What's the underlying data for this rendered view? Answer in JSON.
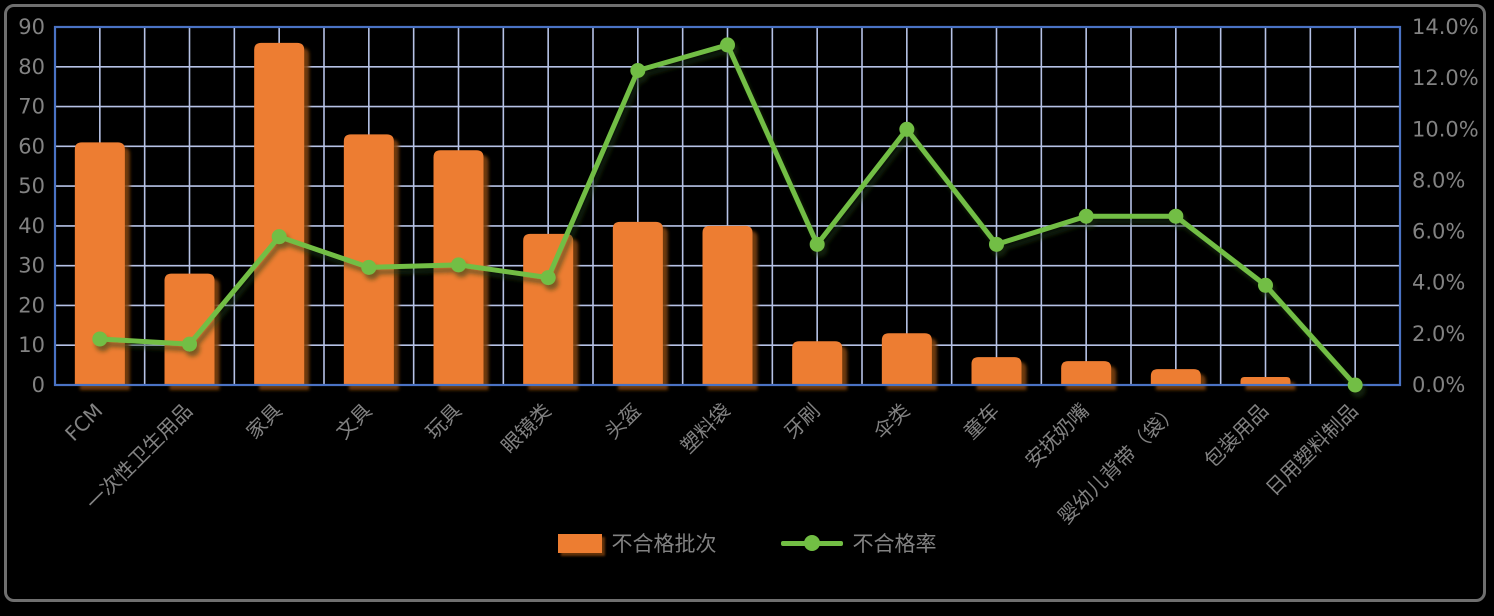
{
  "chart_data": {
    "type": "bar",
    "combo": "bar+line",
    "title": "",
    "categories": [
      "FCM",
      "一次性卫生用品",
      "家具",
      "文具",
      "玩具",
      "眼镜类",
      "头盔",
      "塑料袋",
      "牙刷",
      "伞类",
      "童车",
      "安抚奶嘴",
      "婴幼儿背带（袋）",
      "包装用品",
      "日用塑料制品"
    ],
    "series": [
      {
        "name": "不合格批次",
        "type": "bar",
        "axis": "left",
        "values": [
          61,
          28,
          86,
          63,
          59,
          38,
          41,
          40,
          11,
          13,
          7,
          6,
          4,
          2,
          0
        ]
      },
      {
        "name": "不合格率",
        "type": "line",
        "axis": "right",
        "values": [
          1.8,
          1.6,
          5.8,
          4.6,
          4.7,
          4.2,
          12.3,
          13.3,
          5.5,
          10.0,
          5.5,
          6.6,
          6.6,
          3.9,
          0.0
        ]
      }
    ],
    "left_axis": {
      "min": 0,
      "max": 90,
      "step": 10,
      "ticks": [
        "0",
        "10",
        "20",
        "30",
        "40",
        "50",
        "60",
        "70",
        "80",
        "90"
      ]
    },
    "right_axis": {
      "min": 0,
      "max": 14,
      "step": 2,
      "ticks": [
        "0.0%",
        "2.0%",
        "4.0%",
        "6.0%",
        "8.0%",
        "10.0%",
        "12.0%",
        "14.0%"
      ]
    },
    "legend": {
      "position": "bottom",
      "entries": [
        "不合格批次",
        "不合格率"
      ]
    },
    "grid": {
      "horizontal_every_units": 10,
      "vertical_every_half_category": true
    }
  },
  "colors": {
    "background": "#000000",
    "frame_border": "#6f6f6f",
    "bar": "#ED7D31",
    "bar_shadow": "#7b3f0d",
    "line": "#72BE44",
    "line_shadow": "#1e3a0a",
    "grid": "#b6c2e6",
    "plot_border": "#4a72c4",
    "tick_text": "#828282"
  }
}
